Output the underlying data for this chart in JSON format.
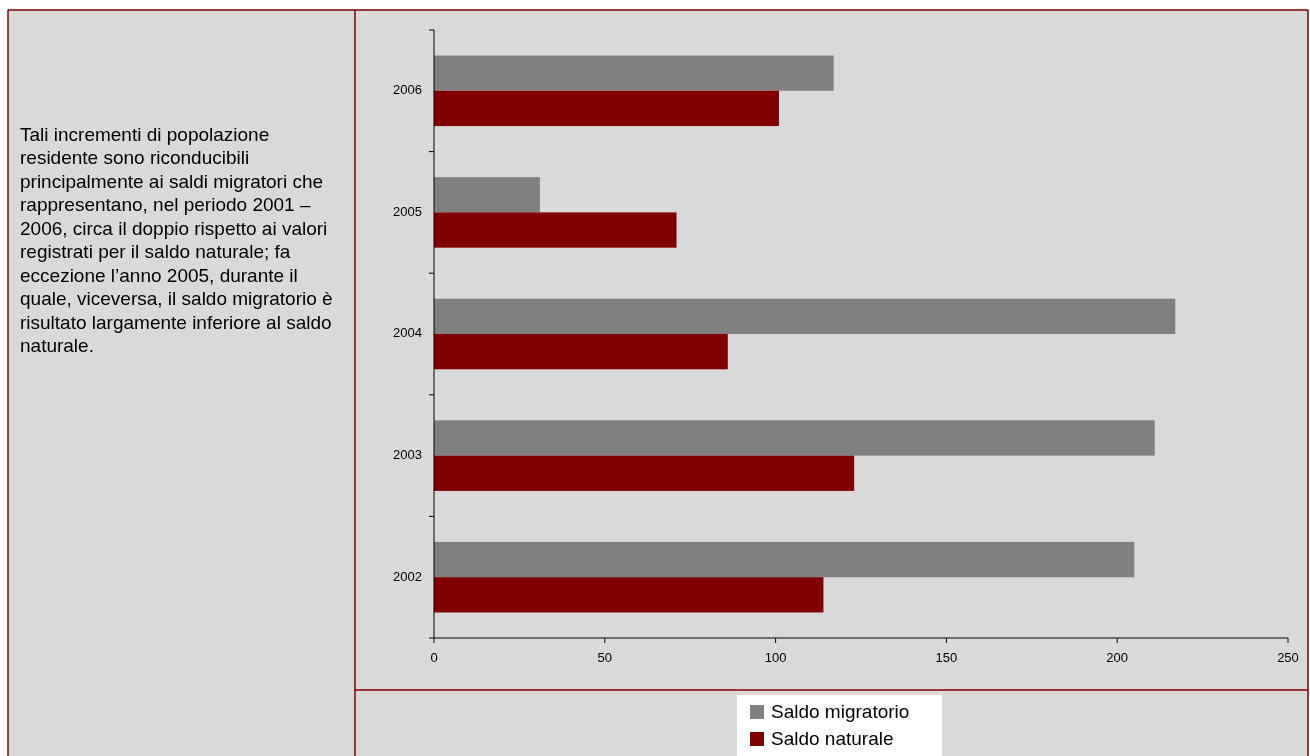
{
  "chart_data": {
    "type": "bar",
    "orientation": "horizontal",
    "categories": [
      "2006",
      "2005",
      "2004",
      "2003",
      "2002"
    ],
    "series": [
      {
        "name": "Saldo migratorio",
        "color": "#808080",
        "values": [
          117,
          31,
          217,
          211,
          205
        ]
      },
      {
        "name": "Saldo naturale",
        "color": "#800000",
        "values": [
          101,
          71,
          86,
          123,
          114
        ]
      }
    ],
    "xlim": [
      0,
      250
    ],
    "xticks": [
      0,
      50,
      100,
      150,
      200,
      250
    ],
    "legend": "bottom",
    "annotations": [
      "Tali incrementi di popolazione residente sono riconducibili principalmente ai saldi migratori che rappresentano, nel periodo 2001 – 2006, circa il doppio rispetto ai valori registrati per il saldo naturale; fa eccezione l’anno 2005, durante il quale, viceversa, il saldo migratorio è risultato largamente inferiore al saldo naturale."
    ]
  }
}
